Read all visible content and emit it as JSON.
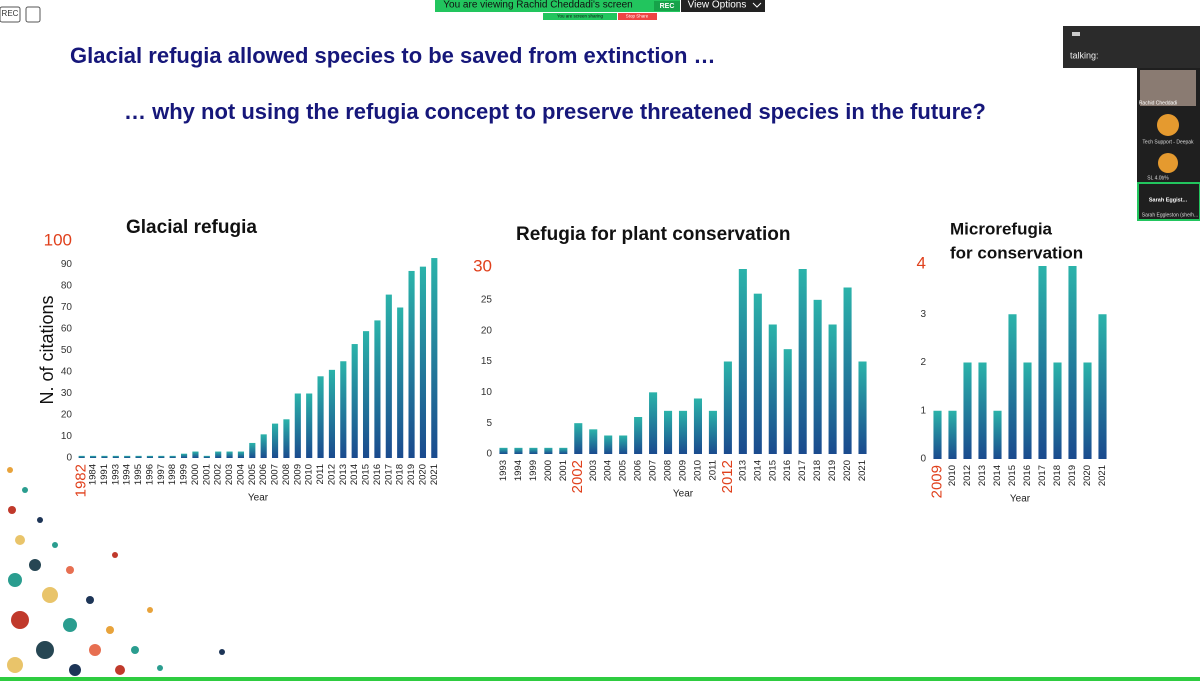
{
  "meeting": {
    "rec": "REC",
    "viewing": "You are viewing Rachid Cheddadi's screen",
    "rec_badge": "REC",
    "view_options": "View Options",
    "sharing": "You are screen sharing",
    "stop_share": "Stop Share",
    "talking": "talking:",
    "participants": [
      "Rachid Cheddadi",
      "Tech Support - Deepak",
      "SL 4.0b%",
      "Sarah Eggist...",
      "Sarah Eggleston (she/h..."
    ]
  },
  "slide": {
    "title": "Glacial refugia allowed species to be saved from extinction …",
    "subtitle": "… why not using the refugia concept to preserve threatened species in the future?"
  },
  "chart_data": [
    {
      "type": "bar",
      "title": [
        "Glacial refugia"
      ],
      "y_label": "N. of citations",
      "x_label": "Year",
      "color": [
        "#2bb3aa",
        "#1a4a8e"
      ],
      "highlight_color": "#e0401c",
      "highlighted_categories": [
        0
      ],
      "categories": [
        "1982",
        "1984",
        "1991",
        "1993",
        "1994",
        "1995",
        "1996",
        "1997",
        "1998",
        "1999",
        "2000",
        "2001",
        "2002",
        "2003",
        "2004",
        "2005",
        "2006",
        "2007",
        "2008",
        "2009",
        "2010",
        "2011",
        "2012",
        "2013",
        "2014",
        "2015",
        "2016",
        "2017",
        "2018",
        "2019",
        "2020",
        "2021"
      ],
      "values": [
        1,
        1,
        1,
        1,
        1,
        1,
        1,
        1,
        1,
        2,
        3,
        1,
        3,
        3,
        3,
        7,
        11,
        16,
        18,
        30,
        30,
        38,
        41,
        45,
        53,
        59,
        64,
        76,
        70,
        87,
        89,
        93
      ],
      "ylim": [
        0,
        100
      ],
      "yticks": [
        0,
        10,
        20,
        30,
        40,
        50,
        60,
        70,
        80,
        90
      ]
    },
    {
      "type": "bar",
      "title": [
        "Refugia for plant conservation"
      ],
      "x_label": "Year",
      "color": [
        "#2bb3aa",
        "#1a4a8e"
      ],
      "highlight_color": "#e0401c",
      "highlighted_categories": [
        5,
        15
      ],
      "categories": [
        "1993",
        "1994",
        "1999",
        "2000",
        "2001",
        "2002",
        "2003",
        "2004",
        "2005",
        "2006",
        "2007",
        "2008",
        "2009",
        "2010",
        "2011",
        "2012",
        "2013",
        "2014",
        "2015",
        "2016",
        "2017",
        "2018",
        "2019",
        "2020",
        "2021"
      ],
      "values": [
        1,
        1,
        1,
        1,
        1,
        5,
        4,
        3,
        3,
        6,
        10,
        7,
        7,
        9,
        7,
        15,
        30,
        26,
        21,
        17,
        30,
        25,
        21,
        27,
        15
      ],
      "ylim": [
        0,
        30
      ],
      "yticks": [
        0,
        5,
        10,
        15,
        20,
        25
      ]
    },
    {
      "type": "bar",
      "title": [
        "Microrefugia",
        "for conservation"
      ],
      "x_label": "Year",
      "color": [
        "#2bb3aa",
        "#1a4a8e"
      ],
      "highlight_color": "#e0401c",
      "highlighted_categories": [
        0
      ],
      "categories": [
        "2009",
        "2010",
        "2012",
        "2013",
        "2014",
        "2015",
        "2016",
        "2017",
        "2018",
        "2019",
        "2020",
        "2021"
      ],
      "values": [
        1,
        1,
        2,
        2,
        1,
        3,
        2,
        4,
        2,
        4,
        2,
        3
      ],
      "ylim": [
        0,
        4
      ],
      "yticks": [
        0,
        1,
        2,
        3
      ]
    }
  ]
}
